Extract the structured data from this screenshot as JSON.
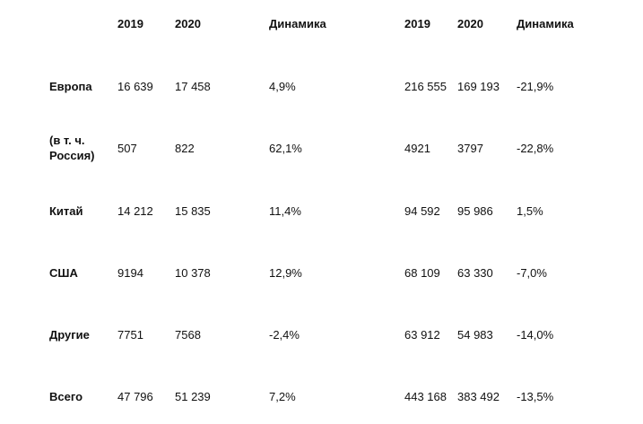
{
  "headers": [
    "2019",
    "2020",
    "Динамика",
    "2019",
    "2020",
    "Динамика"
  ],
  "rows": [
    {
      "label": [
        "Европа"
      ],
      "values": [
        "16 639",
        "17 458",
        "4,9%",
        "216 555",
        "169 193",
        "-21,9%"
      ]
    },
    {
      "label": [
        "(в т. ч.",
        "Россия)"
      ],
      "values": [
        "507",
        "822",
        "62,1%",
        "4921",
        "3797",
        "-22,8%"
      ]
    },
    {
      "label": [
        "Китай"
      ],
      "values": [
        "14 212",
        "15 835",
        "11,4%",
        "94 592",
        "95 986",
        "1,5%"
      ]
    },
    {
      "label": [
        "США"
      ],
      "values": [
        "9194",
        "10 378",
        "12,9%",
        "68 109",
        "63 330",
        "-7,0%"
      ]
    },
    {
      "label": [
        "Другие"
      ],
      "values": [
        "7751",
        "7568",
        "-2,4%",
        "63 912",
        "54 983",
        "-14,0%"
      ]
    },
    {
      "label": [
        "Всего"
      ],
      "values": [
        "47 796",
        "51 239",
        "7,2%",
        "443 168",
        "383 492",
        "-13,5%"
      ]
    }
  ]
}
